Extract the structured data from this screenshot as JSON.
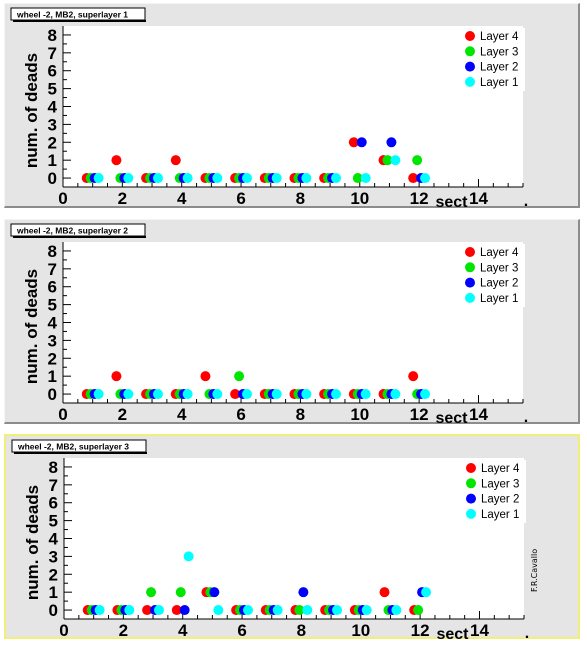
{
  "credit": "F.R.Cavallo",
  "chart_data": [
    {
      "type": "scatter",
      "title": "wheel -2, MB2, superlayer 1",
      "xlabel": "sect",
      "ylabel": "num. of deads",
      "xlim": [
        0,
        15.5
      ],
      "ylim": [
        -0.5,
        8.5
      ],
      "xticks": [
        "0",
        "2",
        "4",
        "6",
        "8",
        "10",
        "12",
        "14"
      ],
      "yticks": [
        "0",
        "1",
        "2",
        "3",
        "4",
        "5",
        "6",
        "7",
        "8"
      ],
      "x_end_label": ".",
      "legend_position": "top-right",
      "series": [
        {
          "name": "Layer 4",
          "color": "#ff0000",
          "x": [
            1,
            2,
            3,
            4,
            5,
            6,
            7,
            8,
            9,
            10,
            11,
            12
          ],
          "y": [
            0,
            1,
            0,
            1,
            0,
            0,
            0,
            0,
            0,
            2,
            1,
            0
          ]
        },
        {
          "name": "Layer 3",
          "color": "#00e600",
          "x": [
            1,
            2,
            3,
            4,
            5,
            6,
            7,
            8,
            9,
            10,
            11,
            12
          ],
          "y": [
            0,
            0,
            0,
            0,
            0,
            0,
            0,
            0,
            0,
            0,
            1,
            1
          ]
        },
        {
          "name": "Layer 2",
          "color": "#0000ff",
          "x": [
            1,
            2,
            3,
            4,
            5,
            6,
            7,
            8,
            9,
            10,
            11,
            12
          ],
          "y": [
            0,
            0,
            0,
            0,
            0,
            0,
            0,
            0,
            0,
            2,
            2,
            0
          ]
        },
        {
          "name": "Layer 1",
          "color": "#00ffff",
          "x": [
            1,
            2,
            3,
            4,
            5,
            6,
            7,
            8,
            9,
            10,
            11,
            12
          ],
          "y": [
            0,
            0,
            0,
            0,
            0,
            0,
            0,
            0,
            0,
            0,
            1,
            0
          ]
        }
      ]
    },
    {
      "type": "scatter",
      "title": "wheel -2, MB2, superlayer 2",
      "xlabel": "sect",
      "ylabel": "num. of deads",
      "xlim": [
        0,
        15.5
      ],
      "ylim": [
        -0.5,
        8.5
      ],
      "xticks": [
        "0",
        "2",
        "4",
        "6",
        "8",
        "10",
        "12",
        "14"
      ],
      "yticks": [
        "0",
        "1",
        "2",
        "3",
        "4",
        "5",
        "6",
        "7",
        "8"
      ],
      "x_end_label": ".",
      "legend_position": "top-right",
      "series": [
        {
          "name": "Layer 4",
          "color": "#ff0000",
          "x": [
            1,
            2,
            3,
            4,
            5,
            6,
            7,
            8,
            9,
            10,
            11,
            12
          ],
          "y": [
            0,
            1,
            0,
            0,
            1,
            0,
            0,
            0,
            0,
            0,
            0,
            1
          ]
        },
        {
          "name": "Layer 3",
          "color": "#00e600",
          "x": [
            1,
            2,
            3,
            4,
            5,
            6,
            7,
            8,
            9,
            10,
            11,
            12
          ],
          "y": [
            0,
            0,
            0,
            0,
            0,
            1,
            0,
            0,
            0,
            0,
            0,
            0
          ]
        },
        {
          "name": "Layer 2",
          "color": "#0000ff",
          "x": [
            1,
            2,
            3,
            4,
            5,
            6,
            7,
            8,
            9,
            10,
            11,
            12
          ],
          "y": [
            0,
            0,
            0,
            0,
            0,
            0,
            0,
            0,
            0,
            0,
            0,
            0
          ]
        },
        {
          "name": "Layer 1",
          "color": "#00ffff",
          "x": [
            1,
            2,
            3,
            4,
            5,
            6,
            7,
            8,
            9,
            10,
            11,
            12
          ],
          "y": [
            0,
            0,
            0,
            0,
            0,
            0,
            0,
            0,
            0,
            0,
            0,
            0
          ]
        }
      ]
    },
    {
      "type": "scatter",
      "title": "wheel -2, MB2, superlayer 3",
      "xlabel": "sect",
      "ylabel": "num. of deads",
      "xlim": [
        0,
        15.5
      ],
      "ylim": [
        -0.5,
        8.5
      ],
      "xticks": [
        "0",
        "2",
        "4",
        "6",
        "8",
        "10",
        "12",
        "14"
      ],
      "yticks": [
        "0",
        "1",
        "2",
        "3",
        "4",
        "5",
        "6",
        "7",
        "8"
      ],
      "x_end_label": ".",
      "legend_position": "top-right",
      "series": [
        {
          "name": "Layer 4",
          "color": "#ff0000",
          "x": [
            1,
            2,
            3,
            4,
            5,
            6,
            7,
            8,
            9,
            10,
            11,
            12
          ],
          "y": [
            0,
            0,
            0,
            0,
            1,
            0,
            0,
            0,
            0,
            0,
            1,
            0
          ]
        },
        {
          "name": "Layer 3",
          "color": "#00e600",
          "x": [
            1,
            2,
            3,
            4,
            5,
            6,
            7,
            8,
            9,
            10,
            11,
            12
          ],
          "y": [
            0,
            0,
            1,
            1,
            1,
            0,
            0,
            0,
            0,
            0,
            0,
            0
          ]
        },
        {
          "name": "Layer 2",
          "color": "#0000ff",
          "x": [
            1,
            2,
            3,
            4,
            5,
            6,
            7,
            8,
            9,
            10,
            11,
            12
          ],
          "y": [
            0,
            0,
            0,
            0,
            1,
            0,
            0,
            1,
            0,
            0,
            0,
            1
          ]
        },
        {
          "name": "Layer 1",
          "color": "#00ffff",
          "x": [
            1,
            2,
            3,
            4,
            5,
            6,
            7,
            8,
            9,
            10,
            11,
            12
          ],
          "y": [
            0,
            0,
            0,
            3,
            0,
            0,
            0,
            0,
            0,
            0,
            0,
            1
          ]
        }
      ]
    }
  ]
}
